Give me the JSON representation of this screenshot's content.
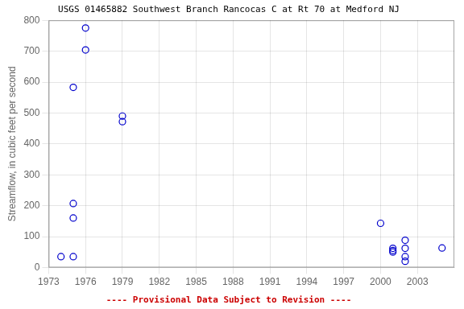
{
  "chart_data": {
    "type": "scatter",
    "title": "USGS 01465882 Southwest Branch Rancocas C at Rt 70 at Medford NJ",
    "y_label": "Streamflow, in cubic feet per second",
    "x": [
      1974,
      1975,
      1975,
      1975,
      1975,
      1976,
      1976,
      1979,
      1979,
      2000,
      2001,
      2001,
      2001,
      2002,
      2002,
      2002,
      2002,
      2005
    ],
    "values": [
      35,
      35,
      160,
      207,
      583,
      704,
      775,
      472,
      490,
      143,
      62,
      50,
      55,
      88,
      62,
      35,
      20,
      63
    ],
    "color": "#0000cc",
    "marker": "circle",
    "xlim": [
      1973,
      2006
    ],
    "ylim": [
      0,
      800
    ],
    "xticks": [
      1973,
      1976,
      1979,
      1982,
      1985,
      1988,
      1991,
      1994,
      1997,
      2000,
      2003
    ],
    "yticks": [
      0,
      100,
      200,
      300,
      400,
      500,
      600,
      700,
      800
    ],
    "grid": true,
    "annotations": [
      {
        "text": "---- Provisional Data Subject to Revision ----",
        "color": "#cc0000"
      }
    ]
  }
}
